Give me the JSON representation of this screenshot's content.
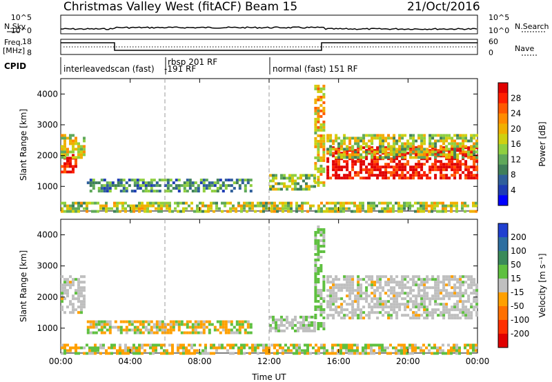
{
  "header": {
    "title": "Christmas Valley West (fitACF)",
    "beam": "Beam 15",
    "date": "21/Oct/2016"
  },
  "noise_panel": {
    "left_label": "N.Sky",
    "right_label": "N.Search",
    "left_ticks": [
      "10^5",
      "10^0"
    ],
    "right_ticks": [
      "10^5",
      "10^0"
    ]
  },
  "freq_panel": {
    "left_label": "Freq.",
    "left_unit": "[MHz]",
    "right_label": "Nave",
    "left_ticks": [
      "18",
      "8"
    ],
    "right_ticks": [
      "60",
      "0"
    ]
  },
  "cpid": {
    "label": "CPID",
    "segments": [
      "interleavedscan (fast)",
      "rbsp 201 RF",
      "-191 RF",
      "normal (fast) 151 RF"
    ]
  },
  "chart_data": [
    {
      "type": "heatmap",
      "title": "",
      "quantity": "Power",
      "ylabel": "Slant Range [km]",
      "xlabel": "Time UT",
      "xticks": [
        "00:00",
        "04:00",
        "08:00",
        "12:00",
        "16:00",
        "20:00",
        "00:00"
      ],
      "yticks": [
        "1000",
        "2000",
        "3000",
        "4000"
      ],
      "ylim": [
        200,
        4500
      ],
      "colorbar": {
        "label": "Power [dB]",
        "ticks": [
          "4",
          "8",
          "12",
          "16",
          "20",
          "24",
          "28"
        ],
        "colors": [
          "#0000ff",
          "#1e3cb4",
          "#2f5f9b",
          "#3f7f5a",
          "#5fa85a",
          "#8fcf3f",
          "#cfd010",
          "#f0b000",
          "#ff8c00",
          "#ff5a00",
          "#ff2000",
          "#e00000"
        ]
      },
      "regions": [
        {
          "t": [
            0.0,
            0.8
          ],
          "range": [
            1500,
            2050
          ],
          "level": 0.95
        },
        {
          "t": [
            0.0,
            1.4
          ],
          "range": [
            1900,
            2700
          ],
          "level": 0.55
        },
        {
          "t": [
            1.5,
            11.0
          ],
          "range": [
            880,
            1250
          ],
          "level": 0.3
        },
        {
          "t": [
            12.0,
            14.6
          ],
          "range": [
            950,
            1400
          ],
          "level": 0.45
        },
        {
          "t": [
            14.6,
            15.2
          ],
          "range": [
            1000,
            4300
          ],
          "level": 0.6
        },
        {
          "t": [
            15.3,
            24.0
          ],
          "range": [
            1300,
            2300
          ],
          "level": 0.95
        },
        {
          "t": [
            15.3,
            24.0
          ],
          "range": [
            1900,
            2700
          ],
          "level": 0.5
        },
        {
          "t": [
            0.0,
            24.0
          ],
          "range": [
            200,
            500
          ],
          "level": 0.5
        }
      ]
    },
    {
      "type": "heatmap",
      "title": "",
      "quantity": "Velocity",
      "ylabel": "Slant Range [km]",
      "xlabel": "Time UT",
      "xticks": [
        "00:00",
        "04:00",
        "08:00",
        "12:00",
        "16:00",
        "20:00",
        "00:00"
      ],
      "yticks": [
        "1000",
        "2000",
        "3000",
        "4000"
      ],
      "ylim": [
        200,
        4500
      ],
      "colorbar": {
        "label": "Velocity [m s⁻¹]",
        "ticks": [
          "200",
          "100",
          "50",
          "15",
          "-15",
          "-50",
          "-100",
          "-200"
        ],
        "colors": [
          "#2040d0",
          "#2d6ea0",
          "#3a8a5a",
          "#5fc040",
          "#bfbfbf",
          "#ffa000",
          "#ff7000",
          "#ff3000",
          "#e00000"
        ]
      },
      "regions": [
        {
          "t": [
            0.0,
            1.4
          ],
          "range": [
            1500,
            2700
          ],
          "level": "gray"
        },
        {
          "t": [
            1.5,
            11.0
          ],
          "range": [
            880,
            1250
          ],
          "level": "mixed-orange-green"
        },
        {
          "t": [
            12.0,
            14.6
          ],
          "range": [
            950,
            1400
          ],
          "level": "gray-green"
        },
        {
          "t": [
            14.6,
            15.2
          ],
          "range": [
            1000,
            4300
          ],
          "level": "green"
        },
        {
          "t": [
            15.3,
            24.0
          ],
          "range": [
            1300,
            2700
          ],
          "level": "gray"
        },
        {
          "t": [
            0.0,
            24.0
          ],
          "range": [
            200,
            500
          ],
          "level": "mixed-orange-green"
        }
      ]
    }
  ]
}
